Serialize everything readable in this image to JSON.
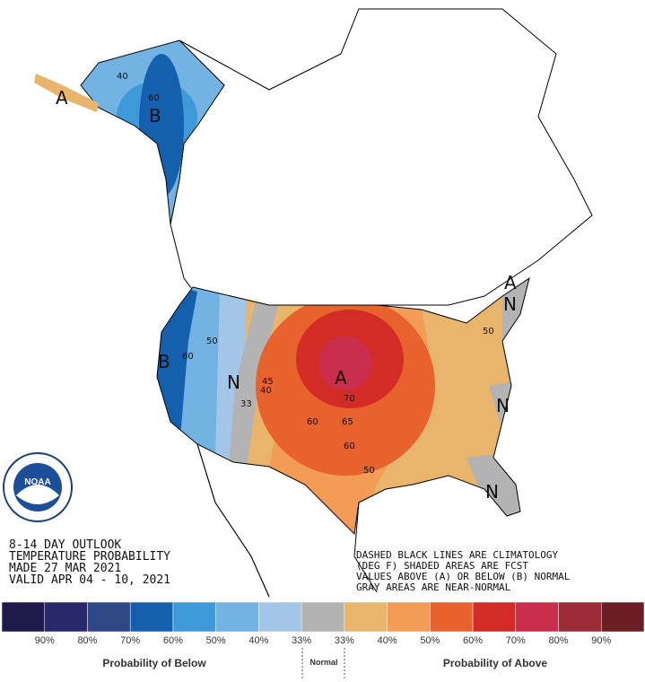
{
  "header": {
    "lines": [
      "8-14 DAY OUTLOOK",
      "TEMPERATURE PROBABILITY",
      "MADE  27 MAR 2021",
      "VALID  APR 04 - 10, 2021"
    ]
  },
  "notes": [
    "DASHED BLACK LINES ARE CLIMATOLOGY",
    "(DEG F) SHADED AREAS ARE FCST",
    "VALUES ABOVE (A) OR BELOW (B) NORMAL",
    "GRAY AREAS ARE NEAR-NORMAL"
  ],
  "logo": "NOAA",
  "map_labels": [
    "A",
    "B",
    "B",
    "N",
    "A",
    "A",
    "N",
    "N",
    "N",
    "40",
    "50",
    "60",
    "45",
    "40",
    "33",
    "70",
    "65",
    "60",
    "50",
    "60",
    "50",
    "60"
  ],
  "legend": {
    "colors": [
      "#1e1a4c",
      "#28286a",
      "#2e4785",
      "#1560ad",
      "#3e9ad8",
      "#72b3e4",
      "#a3c5e7",
      "#b3b3b3",
      "#e9b46c",
      "#f39c56",
      "#e8622e",
      "#d32c26",
      "#c92f4c",
      "#9c2c37",
      "#6c1e24"
    ],
    "labels": [
      "90%",
      "80%",
      "70%",
      "60%",
      "50%",
      "40%",
      "33%",
      "33%",
      "40%",
      "50%",
      "60%",
      "70%",
      "80%",
      "90%"
    ],
    "below": "Probability of Below",
    "normal": "Normal",
    "above": "Probability of Above"
  }
}
